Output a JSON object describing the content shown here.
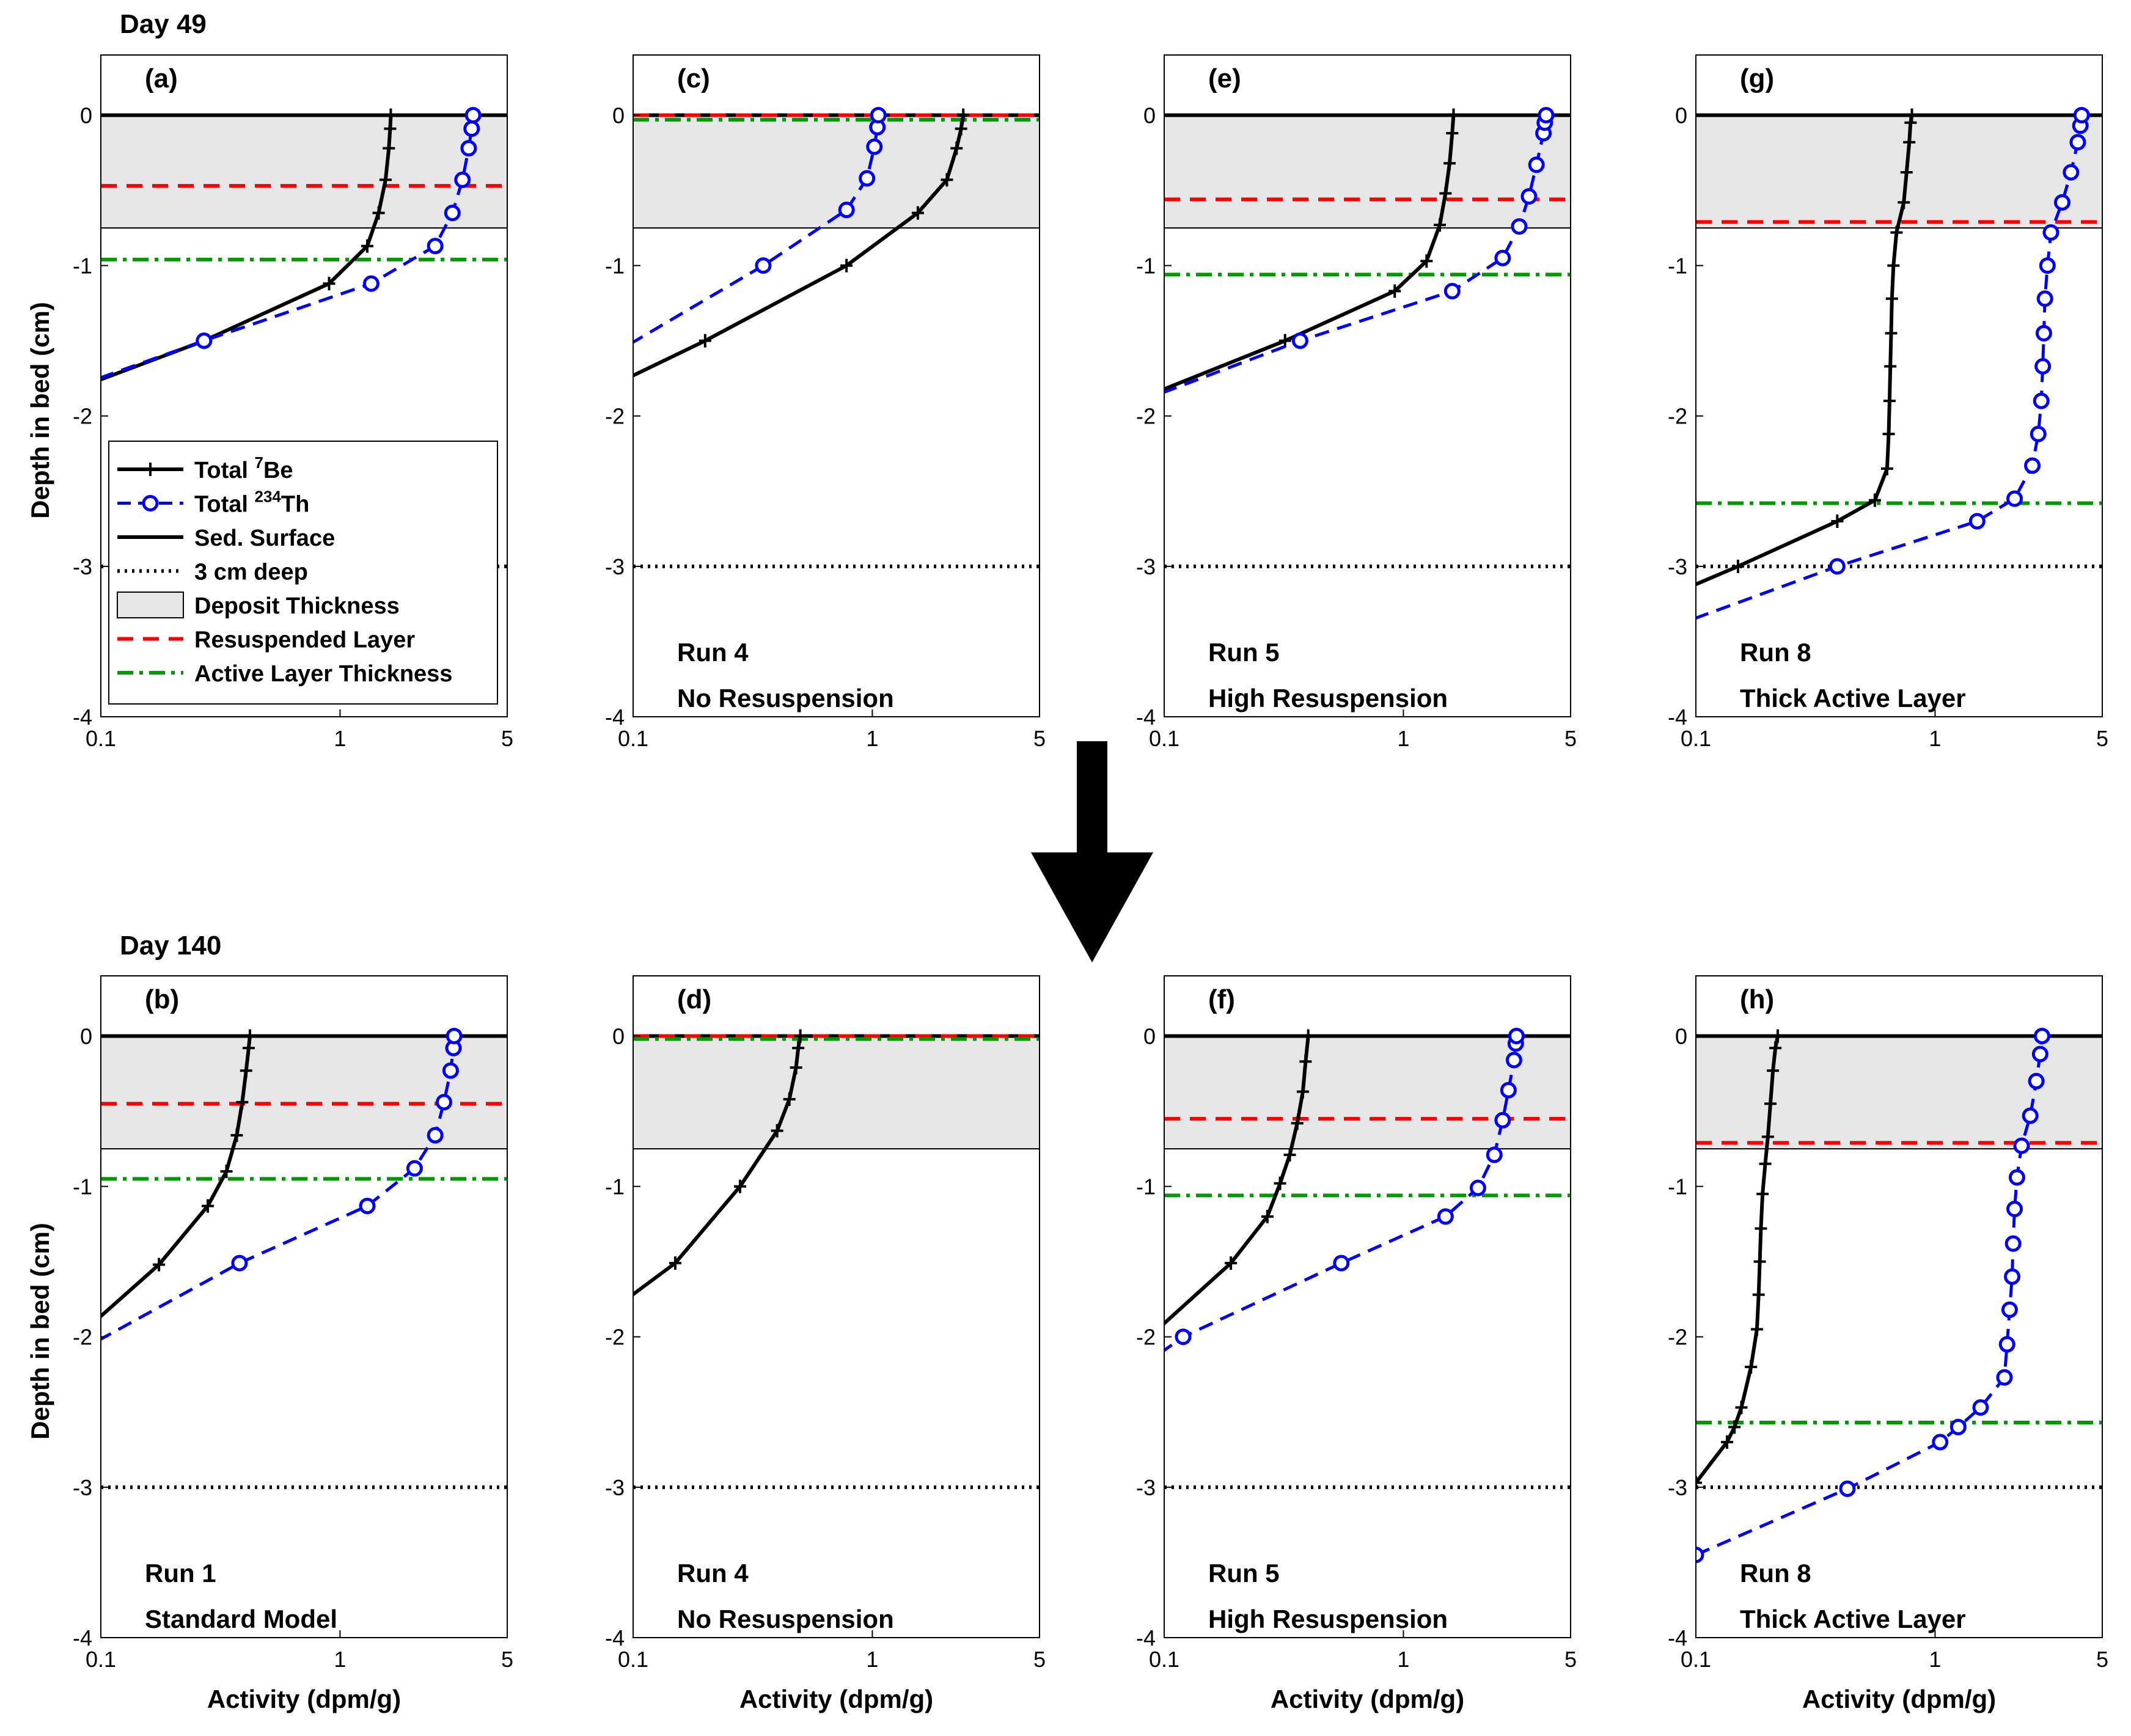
{
  "figure": {
    "day_labels": [
      "Day 49",
      "Day 140"
    ],
    "ylabel": "Depth in bed (cm)",
    "xlabel": "Activity (dpm/g)",
    "xticks": [
      "0.1",
      "1",
      "5"
    ],
    "yticks": [
      "0",
      "-1",
      "-2",
      "-3",
      "-4"
    ]
  },
  "legend": {
    "items": [
      {
        "key": "be7",
        "label": "Total ",
        "sup": "7",
        "tail": "Be"
      },
      {
        "key": "th234",
        "label": "Total ",
        "sup": "234",
        "tail": "Th"
      },
      {
        "key": "surface",
        "label": "Sed. Surface",
        "sup": "",
        "tail": ""
      },
      {
        "key": "deep3",
        "label": "3 cm deep",
        "sup": "",
        "tail": ""
      },
      {
        "key": "deposit",
        "label": "Deposit Thickness",
        "sup": "",
        "tail": ""
      },
      {
        "key": "resusp",
        "label": "Resuspended Layer",
        "sup": "",
        "tail": ""
      },
      {
        "key": "active",
        "label": "Active Layer Thickness",
        "sup": "",
        "tail": ""
      }
    ]
  },
  "colors": {
    "be7": "#000000",
    "th234": "#0000ff",
    "resusp": "#ff0000",
    "active": "#009900",
    "deposit": "#e6e6e6"
  },
  "chart_data": [
    {
      "type": "line",
      "panel": "(a)",
      "run": "",
      "desc": "",
      "xscale": "log",
      "xlim": [
        0.1,
        5
      ],
      "ylim": [
        -4,
        0.4
      ],
      "deposit": 0.75,
      "resuspended": -0.47,
      "active": -0.96,
      "series": [
        {
          "name": "Total 7Be",
          "points": [
            [
              0.07,
              -1.85
            ],
            [
              0.27,
              -1.5
            ],
            [
              0.9,
              -1.12
            ],
            [
              1.3,
              -0.87
            ],
            [
              1.45,
              -0.65
            ],
            [
              1.55,
              -0.43
            ],
            [
              1.6,
              -0.22
            ],
            [
              1.62,
              -0.09
            ],
            [
              1.63,
              0.0
            ]
          ]
        },
        {
          "name": "Total 234Th",
          "points": [
            [
              0.08,
              -1.8
            ],
            [
              0.27,
              -1.5
            ],
            [
              1.35,
              -1.12
            ],
            [
              2.5,
              -0.87
            ],
            [
              2.95,
              -0.65
            ],
            [
              3.25,
              -0.43
            ],
            [
              3.45,
              -0.22
            ],
            [
              3.55,
              -0.09
            ],
            [
              3.6,
              0.0
            ]
          ]
        }
      ]
    },
    {
      "type": "line",
      "panel": "(c)",
      "run": "Run 4",
      "desc": "No Resuspension",
      "xscale": "log",
      "xlim": [
        0.1,
        5
      ],
      "ylim": [
        -4,
        0.4
      ],
      "deposit": 0.75,
      "resuspended": 0.0,
      "active": -0.03,
      "series": [
        {
          "name": "Total 7Be",
          "points": [
            [
              0.07,
              -1.85
            ],
            [
              0.2,
              -1.5
            ],
            [
              0.78,
              -1.0
            ],
            [
              1.55,
              -0.65
            ],
            [
              2.05,
              -0.43
            ],
            [
              2.25,
              -0.22
            ],
            [
              2.35,
              -0.09
            ],
            [
              2.4,
              0.0
            ]
          ]
        },
        {
          "name": "Total 234Th",
          "points": [
            [
              0.08,
              -1.6
            ],
            [
              0.35,
              -1.0
            ],
            [
              0.78,
              -0.63
            ],
            [
              0.95,
              -0.42
            ],
            [
              1.02,
              -0.21
            ],
            [
              1.05,
              -0.08
            ],
            [
              1.06,
              0.0
            ]
          ]
        }
      ]
    },
    {
      "type": "line",
      "panel": "(e)",
      "run": "Run 5",
      "desc": "High Resuspension",
      "xscale": "log",
      "xlim": [
        0.1,
        5
      ],
      "ylim": [
        -4,
        0.4
      ],
      "deposit": 0.75,
      "resuspended": -0.56,
      "active": -1.06,
      "series": [
        {
          "name": "Total 7Be",
          "points": [
            [
              0.07,
              -1.92
            ],
            [
              0.32,
              -1.5
            ],
            [
              0.92,
              -1.17
            ],
            [
              1.25,
              -0.97
            ],
            [
              1.42,
              -0.73
            ],
            [
              1.5,
              -0.52
            ],
            [
              1.56,
              -0.32
            ],
            [
              1.6,
              -0.12
            ],
            [
              1.62,
              0.0
            ]
          ]
        },
        {
          "name": "Total 234Th",
          "points": [
            [
              0.08,
              -1.9
            ],
            [
              0.37,
              -1.5
            ],
            [
              1.6,
              -1.17
            ],
            [
              2.6,
              -0.95
            ],
            [
              3.05,
              -0.74
            ],
            [
              3.35,
              -0.54
            ],
            [
              3.6,
              -0.33
            ],
            [
              3.85,
              -0.12
            ],
            [
              3.9,
              -0.05
            ],
            [
              3.95,
              0.0
            ]
          ]
        }
      ]
    },
    {
      "type": "line",
      "panel": "(g)",
      "run": "Run 8",
      "desc": "Thick Active Layer",
      "xscale": "log",
      "xlim": [
        0.1,
        5
      ],
      "ylim": [
        -4,
        0.4
      ],
      "deposit": 0.75,
      "resuspended": -0.71,
      "active": -2.58,
      "series": [
        {
          "name": "Total 7Be",
          "points": [
            [
              0.09,
              -3.15
            ],
            [
              0.15,
              -3.0
            ],
            [
              0.39,
              -2.7
            ],
            [
              0.56,
              -2.56
            ],
            [
              0.63,
              -2.35
            ],
            [
              0.64,
              -2.12
            ],
            [
              0.645,
              -1.9
            ],
            [
              0.65,
              -1.67
            ],
            [
              0.655,
              -1.45
            ],
            [
              0.66,
              -1.22
            ],
            [
              0.67,
              -1.0
            ],
            [
              0.69,
              -0.78
            ],
            [
              0.74,
              -0.58
            ],
            [
              0.76,
              -0.38
            ],
            [
              0.78,
              -0.18
            ],
            [
              0.79,
              -0.05
            ],
            [
              0.8,
              0.0
            ]
          ]
        },
        {
          "name": "Total 234Th",
          "points": [
            [
              0.08,
              -3.4
            ],
            [
              0.39,
              -3.0
            ],
            [
              1.5,
              -2.7
            ],
            [
              2.15,
              -2.55
            ],
            [
              2.55,
              -2.33
            ],
            [
              2.7,
              -2.12
            ],
            [
              2.78,
              -1.9
            ],
            [
              2.82,
              -1.67
            ],
            [
              2.85,
              -1.45
            ],
            [
              2.88,
              -1.22
            ],
            [
              2.95,
              -1.0
            ],
            [
              3.05,
              -0.78
            ],
            [
              3.4,
              -0.58
            ],
            [
              3.7,
              -0.38
            ],
            [
              3.95,
              -0.18
            ],
            [
              4.05,
              -0.07
            ],
            [
              4.1,
              0.0
            ]
          ]
        }
      ]
    },
    {
      "type": "line",
      "panel": "(b)",
      "run": "Run 1",
      "desc": "Standard Model",
      "xscale": "log",
      "xlim": [
        0.1,
        5
      ],
      "ylim": [
        -4,
        0.4
      ],
      "deposit": 0.75,
      "resuspended": -0.45,
      "active": -0.95,
      "series": [
        {
          "name": "Total 7Be",
          "points": [
            [
              0.08,
              -2.0
            ],
            [
              0.175,
              -1.52
            ],
            [
              0.28,
              -1.13
            ],
            [
              0.335,
              -0.9
            ],
            [
              0.37,
              -0.66
            ],
            [
              0.39,
              -0.44
            ],
            [
              0.405,
              -0.23
            ],
            [
              0.415,
              -0.08
            ],
            [
              0.42,
              0.0
            ]
          ]
        },
        {
          "name": "Total 234Th",
          "points": [
            [
              0.08,
              -2.1
            ],
            [
              0.38,
              -1.51
            ],
            [
              1.3,
              -1.13
            ],
            [
              2.05,
              -0.88
            ],
            [
              2.5,
              -0.66
            ],
            [
              2.72,
              -0.44
            ],
            [
              2.9,
              -0.23
            ],
            [
              2.98,
              -0.08
            ],
            [
              3.0,
              0.0
            ]
          ]
        }
      ]
    },
    {
      "type": "line",
      "panel": "(d)",
      "run": "Run 4",
      "desc": "No Resuspension",
      "xscale": "log",
      "xlim": [
        0.1,
        5
      ],
      "ylim": [
        -4,
        0.4
      ],
      "deposit": 0.75,
      "resuspended": 0.0,
      "active": -0.02,
      "series": [
        {
          "name": "Total 7Be",
          "points": [
            [
              0.07,
              -1.9
            ],
            [
              0.15,
              -1.51
            ],
            [
              0.28,
              -1.0
            ],
            [
              0.4,
              -0.63
            ],
            [
              0.45,
              -0.42
            ],
            [
              0.48,
              -0.21
            ],
            [
              0.49,
              -0.08
            ],
            [
              0.5,
              0.0
            ]
          ]
        }
      ]
    },
    {
      "type": "line",
      "panel": "(f)",
      "run": "Run 5",
      "desc": "High Resuspension",
      "xscale": "log",
      "xlim": [
        0.1,
        5
      ],
      "ylim": [
        -4,
        0.4
      ],
      "deposit": 0.75,
      "resuspended": -0.55,
      "active": -1.06,
      "series": [
        {
          "name": "Total 7Be",
          "points": [
            [
              0.08,
              -2.05
            ],
            [
              0.19,
              -1.51
            ],
            [
              0.27,
              -1.2
            ],
            [
              0.305,
              -0.98
            ],
            [
              0.335,
              -0.79
            ],
            [
              0.36,
              -0.58
            ],
            [
              0.38,
              -0.37
            ],
            [
              0.39,
              -0.17
            ],
            [
              0.4,
              0.0
            ]
          ]
        },
        {
          "name": "Total 234Th",
          "points": [
            [
              0.08,
              -2.2
            ],
            [
              0.12,
              -2.0
            ],
            [
              0.55,
              -1.51
            ],
            [
              1.5,
              -1.2
            ],
            [
              2.05,
              -1.01
            ],
            [
              2.4,
              -0.79
            ],
            [
              2.6,
              -0.56
            ],
            [
              2.75,
              -0.36
            ],
            [
              2.9,
              -0.16
            ],
            [
              2.95,
              -0.05
            ],
            [
              2.97,
              0.0
            ]
          ]
        }
      ]
    },
    {
      "type": "line",
      "panel": "(h)",
      "run": "Run 8",
      "desc": "Thick Active Layer",
      "xscale": "log",
      "xlim": [
        0.1,
        5
      ],
      "ylim": [
        -4,
        0.4
      ],
      "deposit": 0.75,
      "resuspended": -0.71,
      "active": -2.57,
      "series": [
        {
          "name": "Total 7Be",
          "points": [
            [
              0.1,
              -2.97
            ],
            [
              0.135,
              -2.7
            ],
            [
              0.145,
              -2.6
            ],
            [
              0.155,
              -2.47
            ],
            [
              0.17,
              -2.2
            ],
            [
              0.18,
              -1.95
            ],
            [
              0.183,
              -1.72
            ],
            [
              0.185,
              -1.5
            ],
            [
              0.187,
              -1.28
            ],
            [
              0.19,
              -1.05
            ],
            [
              0.195,
              -0.85
            ],
            [
              0.2,
              -0.67
            ],
            [
              0.205,
              -0.45
            ],
            [
              0.21,
              -0.23
            ],
            [
              0.215,
              -0.08
            ],
            [
              0.22,
              0.0
            ]
          ]
        },
        {
          "name": "Total 234Th",
          "points": [
            [
              0.1,
              -3.45
            ],
            [
              0.43,
              -3.01
            ],
            [
              1.05,
              -2.7
            ],
            [
              1.25,
              -2.6
            ],
            [
              1.55,
              -2.47
            ],
            [
              1.95,
              -2.27
            ],
            [
              2.0,
              -2.05
            ],
            [
              2.05,
              -1.82
            ],
            [
              2.1,
              -1.6
            ],
            [
              2.12,
              -1.38
            ],
            [
              2.15,
              -1.15
            ],
            [
              2.2,
              -0.94
            ],
            [
              2.3,
              -0.73
            ],
            [
              2.5,
              -0.53
            ],
            [
              2.65,
              -0.3
            ],
            [
              2.75,
              -0.12
            ],
            [
              2.8,
              0.0
            ]
          ]
        }
      ]
    }
  ]
}
